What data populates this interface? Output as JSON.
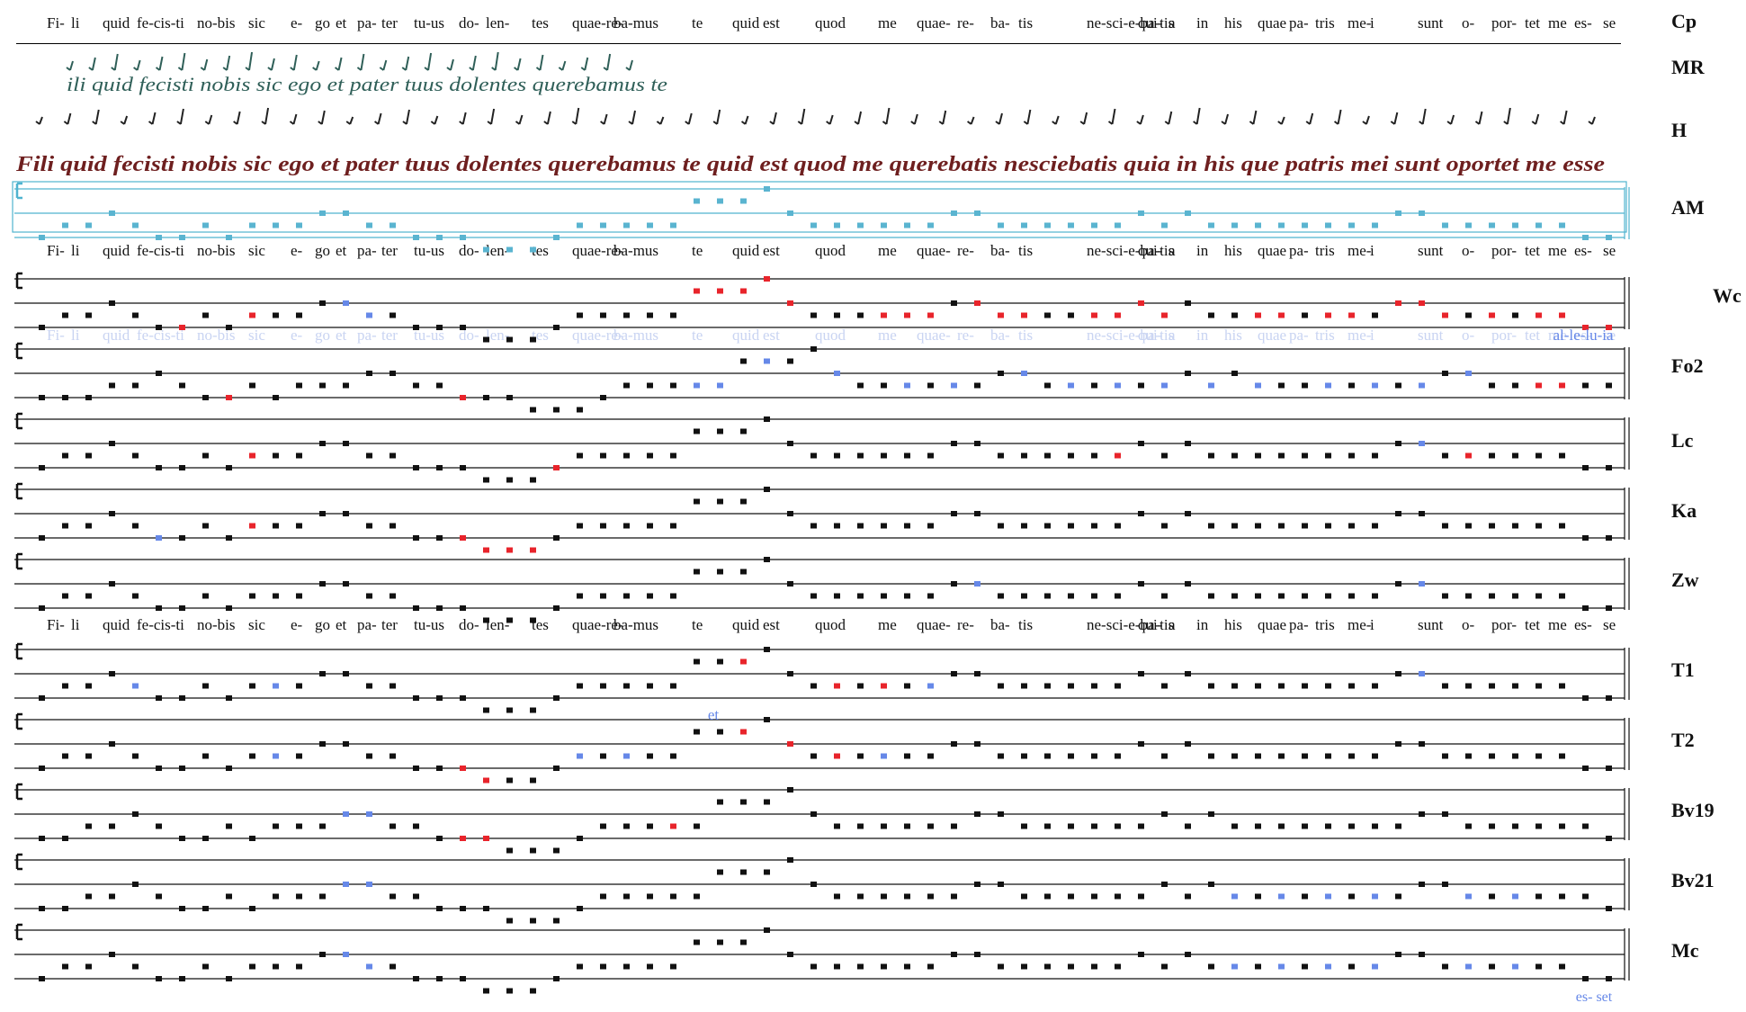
{
  "lyrics_cp": [
    "Fi-",
    "li",
    "quid",
    "fe-cis-ti",
    "no-bis",
    "sic",
    "e-",
    "go",
    "et",
    "pa-",
    "ter",
    "tu-us",
    "do-",
    "len-",
    "tes",
    "quae-re-",
    "ba-mus",
    "te",
    "quid",
    "est",
    "quod",
    "me",
    "quae-",
    "re-",
    "ba-",
    "tis",
    "ne-sci-e-ba-tis",
    "qui-",
    "a",
    "in",
    "his",
    "quae",
    "pa-",
    "tris",
    "me-",
    "i",
    "sunt",
    "o-",
    "por-",
    "tet",
    "me",
    "es-",
    "se"
  ],
  "lyrics_row2": [
    "Fi-",
    "li",
    "quid",
    "fe-cis-ti",
    "no-bis",
    "sic",
    "e-",
    "go",
    "et",
    "pa-",
    "ter",
    "tu-us",
    "do-",
    "len-",
    "tes",
    "quae-re-",
    "ba-mus",
    "te",
    "quid",
    "est",
    "quod",
    "me",
    "quae-",
    "re-",
    "ba-",
    "tis",
    "ne-sci-e-ba-tis",
    "qui-",
    "a",
    "in",
    "his",
    "quae",
    "pa-",
    "tris",
    "me-",
    "i",
    "sunt",
    "o-",
    "por-",
    "tet",
    "me",
    "es-",
    "se"
  ],
  "lyrics_fo2_faded": [
    "Fi-",
    "li",
    "quid",
    "fe-cis-ti",
    "no-bis",
    "sic",
    "e-",
    "go",
    "et",
    "pa-",
    "ter",
    "tu-us",
    "do-",
    "len-",
    "tes",
    "quae-re-",
    "ba-mus",
    "te",
    "quid",
    "est",
    "quod",
    "me",
    "quae-",
    "re-",
    "ba-",
    "tis",
    "ne-sci-e-ba-tis",
    "qui-",
    "a",
    "in",
    "his",
    "quae",
    "pa-",
    "tris",
    "me-",
    "i",
    "sunt",
    "o-",
    "por-",
    "tet",
    "me",
    "es-",
    "se"
  ],
  "lyrics_row3": [
    "Fi-",
    "li",
    "quid",
    "fe-cis-ti",
    "no-bis",
    "sic",
    "e-",
    "go",
    "et",
    "pa-",
    "ter",
    "tu-us",
    "do-",
    "len-",
    "tes",
    "quae-re-",
    "ba-mus",
    "te",
    "quid",
    "est",
    "quod",
    "me",
    "quae-",
    "re-",
    "ba-",
    "tis",
    "ne-sci-e-ba-tis",
    "qui-",
    "a",
    "in",
    "his",
    "quae",
    "pa-",
    "tris",
    "me-",
    "i",
    "sunt",
    "o-",
    "por-",
    "tet",
    "me",
    "es-",
    "se"
  ],
  "manuscript_mr": "ili quid fecisti nobis sic ego et pater tuus dolentes querebamus te",
  "manuscript_h": "Fili quid fecisti nobis sic ego et pater tuus dolentes querebamus te quid est quod me querebatis nesciebatis quia in his que patris mei sunt oportet me esse",
  "alleluia_label": "al-le-lu-ia",
  "t2_et_label": "et",
  "mc_esset_label": "es- set",
  "source_labels": [
    "Cp",
    "MR",
    "H",
    "AM",
    "Wc",
    "Fo2",
    "Lc",
    "Ka",
    "Zw",
    "T1",
    "T2",
    "Bv19",
    "Bv21",
    "Mc"
  ],
  "colors": {
    "ink": "#111111",
    "variant_red": "#e8242b",
    "variant_blue": "#6688e8",
    "am_staff": "#4fb3cf",
    "am_note": "#5ab4d0",
    "mr_ink": "#2f5f58",
    "h_ink": "#6e1f1f",
    "faded": "#c9d4f2"
  }
}
